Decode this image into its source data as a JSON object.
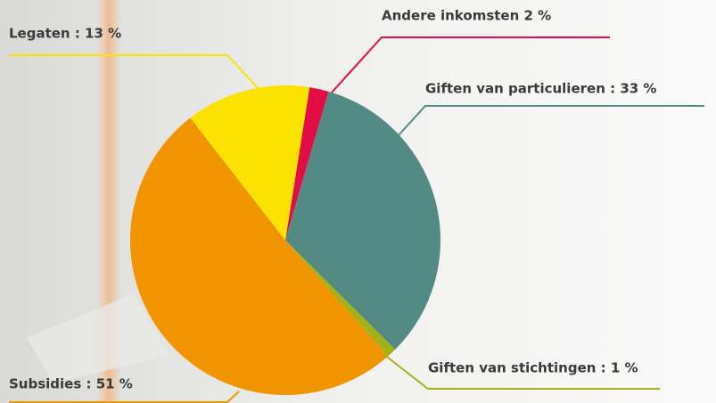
{
  "chart_data": {
    "type": "pie",
    "categories": [
      "Andere inkomsten 2 %",
      "Giften van particulieren : 33 %",
      "Giften van stichtingen : 1 %",
      "Subsidies : 51 %",
      "Legaten : 13 %"
    ],
    "values": [
      2,
      33,
      1,
      51,
      13
    ],
    "colors": [
      "#e30d45",
      "#548a84",
      "#a6b116",
      "#f09400",
      "#fbe200"
    ]
  }
}
